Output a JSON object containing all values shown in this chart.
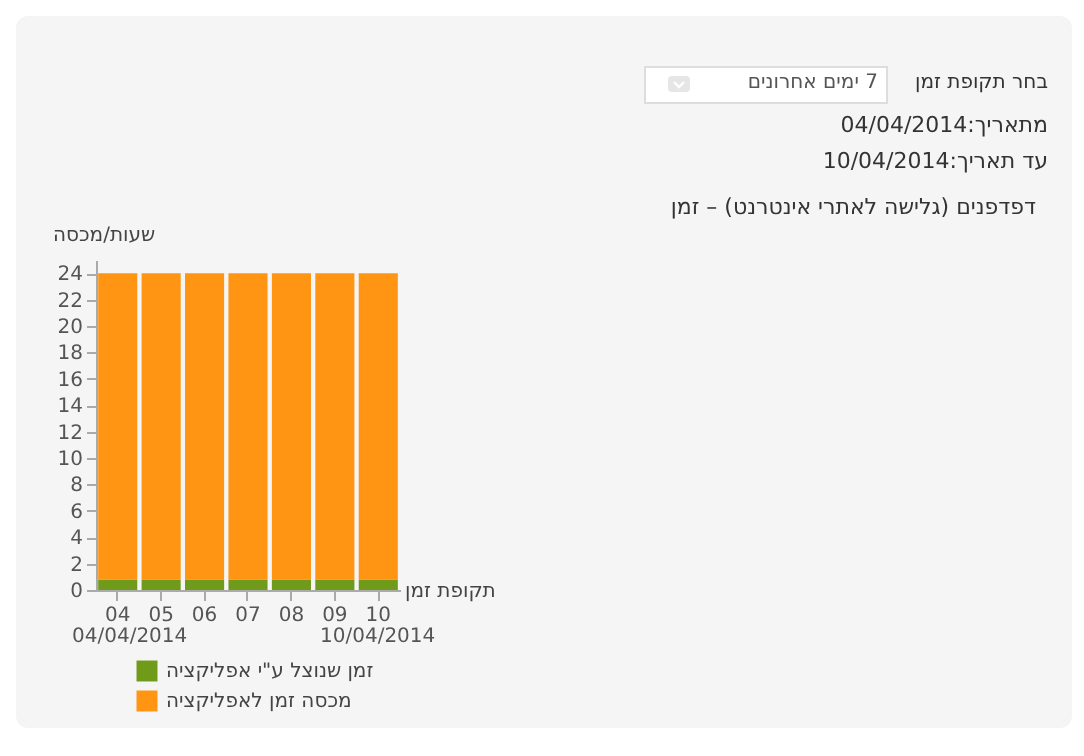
{
  "chart_data": {
    "type": "bar",
    "stacked": true,
    "title": "דפדפנים (גלישה לאתרי אינטרנט) – זמן",
    "ylabel": "שעות/מכסה",
    "xlabel": "תקופת זמן",
    "annotations": [
      "בחר תקופת זמן",
      "7 ימים אחרונים",
      "מתאריך:04/04/2014",
      "עד תאריך:10/04/2014",
      "04/04/2014",
      "10/04/2014"
    ],
    "categories": [
      "04",
      "05",
      "06",
      "07",
      "08",
      "09",
      "10"
    ],
    "series": [
      {
        "name": "זמן שנוצל ע\"י אפליקציה",
        "color": "#6f9a1a",
        "values": [
          0.8,
          0.8,
          0.8,
          0.8,
          0.8,
          0.8,
          0.8
        ]
      },
      {
        "name": "מכסה זמן לאפליקציה",
        "color": "#ff9512",
        "values": [
          23.2,
          23.2,
          23.2,
          23.2,
          23.2,
          23.2,
          23.2
        ]
      }
    ],
    "ylim": [
      0,
      25
    ],
    "yticks": [
      0,
      2,
      4,
      6,
      8,
      10,
      12,
      14,
      16,
      18,
      20,
      22,
      24
    ],
    "grid": false,
    "legend": "bottom"
  }
}
